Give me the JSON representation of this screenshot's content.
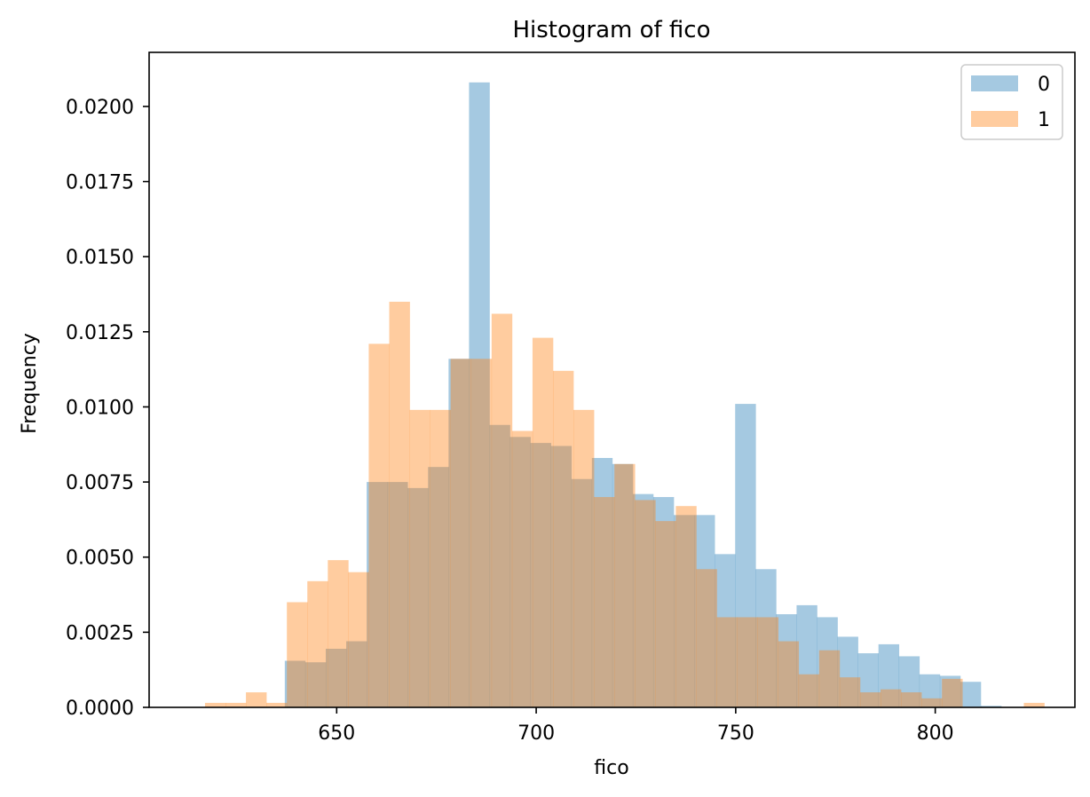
{
  "chart_data": {
    "type": "bar",
    "title": "Histogram of fico",
    "xlabel": "fico",
    "ylabel": "Frequency",
    "xlim": [
      603,
      835
    ],
    "ylim": [
      0,
      0.0218
    ],
    "xticks": [
      650,
      700,
      750,
      800
    ],
    "xtick_labels": [
      "650",
      "700",
      "750",
      "800"
    ],
    "yticks": [
      0,
      0.0025,
      0.005,
      0.0075,
      0.01,
      0.0125,
      0.015,
      0.0175,
      0.02
    ],
    "ytick_labels": [
      "0.0000",
      "0.0025",
      "0.0050",
      "0.0075",
      "0.0100",
      "0.0125",
      "0.0150",
      "0.0175",
      "0.0200"
    ],
    "legend_position": "upper right",
    "series": [
      {
        "name": "0",
        "color": "#1f77b4",
        "alpha": 0.4,
        "bin_start": 637,
        "bin_width": 5.13,
        "values": [
          0.00155,
          0.0015,
          0.00195,
          0.0022,
          0.0075,
          0.0075,
          0.0073,
          0.008,
          0.0116,
          0.0208,
          0.0094,
          0.009,
          0.0088,
          0.0087,
          0.0076,
          0.0083,
          0.0081,
          0.0071,
          0.007,
          0.0064,
          0.0064,
          0.0051,
          0.0101,
          0.0046,
          0.0031,
          0.0034,
          0.003,
          0.00235,
          0.0018,
          0.0021,
          0.0017,
          0.0011,
          0.00105,
          0.00085,
          5e-05
        ]
      },
      {
        "name": "1",
        "color": "#ff7f0e",
        "alpha": 0.4,
        "bin_start": 617,
        "bin_width": 5.13,
        "values": [
          0.00015,
          0.00015,
          0.0005,
          0.00015,
          0.0035,
          0.0042,
          0.0049,
          0.0045,
          0.0121,
          0.0135,
          0.0099,
          0.0099,
          0.0116,
          0.0116,
          0.0131,
          0.0092,
          0.0123,
          0.0112,
          0.0099,
          0.007,
          0.0081,
          0.0069,
          0.0062,
          0.0067,
          0.0046,
          0.003,
          0.003,
          0.003,
          0.0022,
          0.0011,
          0.0019,
          0.001,
          0.0005,
          0.0006,
          0.0005,
          0.0003,
          0.00095,
          0.0,
          0.0,
          0.0,
          0.00015
        ]
      }
    ]
  }
}
